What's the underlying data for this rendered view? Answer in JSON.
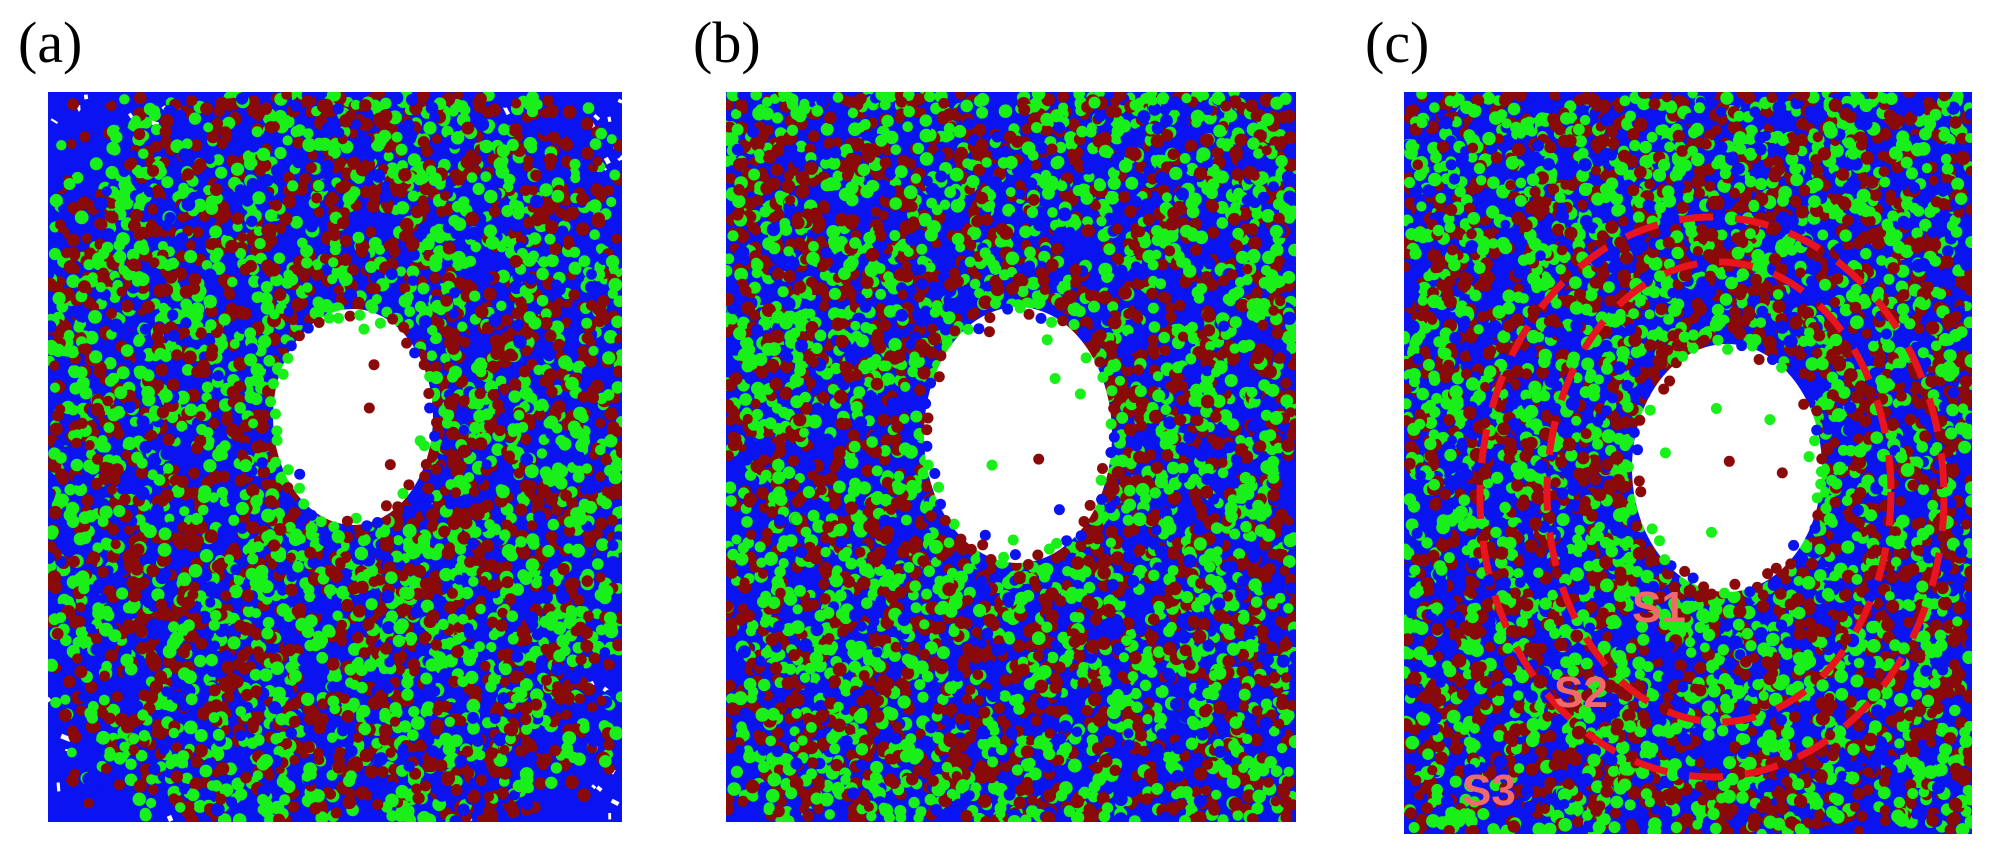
{
  "figure": {
    "panels": [
      {
        "id": "a",
        "label": "(a)"
      },
      {
        "id": "b",
        "label": "(b)"
      },
      {
        "id": "c",
        "label": "(c)",
        "shell_labels": [
          "S1",
          "S2",
          "S3"
        ]
      }
    ]
  },
  "colors": {
    "matrix": "#0a14f0",
    "particle_green": "#19f019",
    "particle_dark_red": "#8a0a0a",
    "void": "#ffffff",
    "shell_outline": "#e8141e",
    "shell_label": "#f06a6a"
  }
}
